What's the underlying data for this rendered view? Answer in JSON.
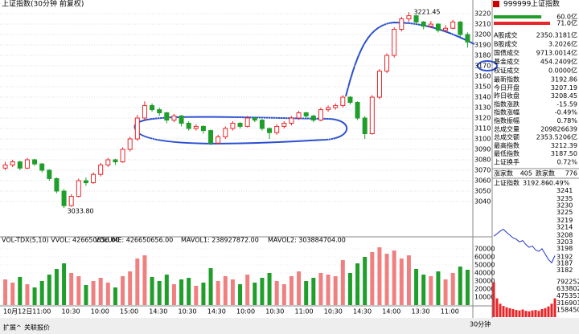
{
  "window": {
    "title": "上证指数(30分钟 前复权)",
    "period": "30分钟",
    "tabs": [
      "扩展^",
      "关联报价"
    ]
  },
  "kline_chart": {
    "ylim": [
      3010,
      3225.4
    ],
    "yticks": [
      3220,
      3210,
      3200,
      3190,
      3180,
      3170,
      3160,
      3150,
      3140,
      3130,
      3120,
      3110,
      3100,
      3090,
      3080,
      3070,
      3060,
      3050,
      3040
    ],
    "up_color": "#e8262a",
    "down_color": "#1f9e2a",
    "high_label": {
      "value": 3221.45,
      "label": "3221.45"
    },
    "low_label": {
      "value": 3033.8,
      "label": "3033.80"
    },
    "candles": [
      [
        3072,
        3078,
        3070,
        3075
      ],
      [
        3075,
        3080,
        3073,
        3078
      ],
      [
        3078,
        3079,
        3070,
        3072
      ],
      [
        3072,
        3082,
        3071,
        3080
      ],
      [
        3080,
        3081,
        3074,
        3076
      ],
      [
        3076,
        3077,
        3068,
        3070
      ],
      [
        3070,
        3071,
        3060,
        3062
      ],
      [
        3062,
        3063,
        3048,
        3050
      ],
      [
        3050,
        3052,
        3033.8,
        3036
      ],
      [
        3036,
        3047,
        3035,
        3045
      ],
      [
        3045,
        3062,
        3044,
        3060
      ],
      [
        3060,
        3063,
        3055,
        3058
      ],
      [
        3058,
        3068,
        3057,
        3066
      ],
      [
        3066,
        3077,
        3064,
        3075
      ],
      [
        3075,
        3082,
        3073,
        3080
      ],
      [
        3080,
        3081,
        3075,
        3078
      ],
      [
        3078,
        3092,
        3077,
        3090
      ],
      [
        3090,
        3102,
        3088,
        3100
      ],
      [
        3100,
        3123,
        3098,
        3120
      ],
      [
        3120,
        3136,
        3118,
        3132
      ],
      [
        3132,
        3134,
        3126,
        3128
      ],
      [
        3128,
        3130,
        3122,
        3125
      ],
      [
        3125,
        3126,
        3115,
        3118
      ],
      [
        3118,
        3124,
        3116,
        3122
      ],
      [
        3122,
        3123,
        3112,
        3115
      ],
      [
        3115,
        3117,
        3108,
        3110
      ],
      [
        3110,
        3114,
        3108,
        3112
      ],
      [
        3112,
        3113,
        3105,
        3108
      ],
      [
        3108,
        3109,
        3094,
        3096
      ],
      [
        3096,
        3104,
        3095,
        3102
      ],
      [
        3102,
        3112,
        3100,
        3110
      ],
      [
        3110,
        3117,
        3108,
        3115
      ],
      [
        3115,
        3116,
        3110,
        3112
      ],
      [
        3112,
        3122,
        3111,
        3120
      ],
      [
        3120,
        3121,
        3116,
        3118
      ],
      [
        3118,
        3119,
        3108,
        3110
      ],
      [
        3110,
        3111,
        3100,
        3106
      ],
      [
        3106,
        3114,
        3104,
        3112
      ],
      [
        3112,
        3117,
        3110,
        3115
      ],
      [
        3115,
        3122,
        3113,
        3120
      ],
      [
        3120,
        3127,
        3118,
        3125
      ],
      [
        3125,
        3126,
        3120,
        3122
      ],
      [
        3122,
        3123,
        3116,
        3118
      ],
      [
        3118,
        3130,
        3117,
        3128
      ],
      [
        3128,
        3132,
        3126,
        3130
      ],
      [
        3130,
        3134,
        3128,
        3132
      ],
      [
        3132,
        3142,
        3130,
        3140
      ],
      [
        3140,
        3141,
        3133,
        3135
      ],
      [
        3135,
        3136,
        3118,
        3120
      ],
      [
        3120,
        3122,
        3100,
        3105
      ],
      [
        3105,
        3142,
        3104,
        3140
      ],
      [
        3140,
        3167,
        3138,
        3165
      ],
      [
        3165,
        3182,
        3163,
        3180
      ],
      [
        3180,
        3207,
        3178,
        3205
      ],
      [
        3205,
        3217,
        3203,
        3215
      ],
      [
        3215,
        3221.45,
        3212,
        3218
      ],
      [
        3218,
        3219,
        3210,
        3212
      ],
      [
        3212,
        3213,
        3205,
        3208
      ],
      [
        3208,
        3213,
        3206,
        3210
      ],
      [
        3210,
        3211,
        3202,
        3204
      ],
      [
        3204,
        3209,
        3203,
        3206
      ],
      [
        3206,
        3214,
        3205,
        3212
      ],
      [
        3212,
        3213,
        3198,
        3200
      ],
      [
        3200,
        3202,
        3187.5,
        3192.86
      ]
    ],
    "time_labels": [
      "10月12日",
      "11:00",
      "10:30",
      "10:00",
      "15:00",
      "14:30",
      "10:30",
      "14:30",
      "10:00",
      "10:30",
      "11:00",
      "10:30",
      "14:30",
      "14:00",
      "13:30",
      "11:00"
    ]
  },
  "volume_chart": {
    "header": "VOL-TDX(5,10)  VVOL: 426650656.00",
    "volume": "VOLUME: 426650656.00",
    "mavol1": "MAVOL1: 238927872.00",
    "mavol2": "MAVOL2: 303884704.00",
    "ylim": [
      0,
      80000
    ],
    "yticks": [
      70000,
      60000,
      50000,
      40000,
      30000,
      20000,
      10000
    ],
    "values": [
      32000,
      28000,
      35000,
      26000,
      22000,
      30000,
      38000,
      45000,
      52000,
      40000,
      36000,
      25000,
      30000,
      34000,
      28000,
      22000,
      36000,
      42000,
      58000,
      62000,
      35000,
      30000,
      38000,
      26000,
      32000,
      34000,
      24000,
      28000,
      46000,
      30000,
      36000,
      32000,
      26000,
      38000,
      28000,
      34000,
      40000,
      30000,
      26000,
      36000,
      42000,
      30000,
      34000,
      40000,
      38000,
      36000,
      56000,
      40000,
      52000,
      60000,
      66000,
      72000,
      64000,
      68000,
      58000,
      62000,
      45000,
      38000,
      36000,
      42000,
      32000,
      40000,
      48000,
      44000
    ]
  },
  "quote_panel": {
    "code": "999999",
    "name": "上证指数",
    "buy": {
      "value": 60.0,
      "label": "60.0亿"
    },
    "sell": {
      "value": 71.0,
      "label": "71.0亿"
    },
    "trade_rows": [
      [
        "A股成交",
        "2350.3181亿"
      ],
      [
        "B股成交",
        "3.2026亿"
      ],
      [
        "国债成交",
        "9713.0014亿"
      ],
      [
        "基金成交",
        "454.2409亿"
      ],
      [
        "权证成交",
        "0.0000亿"
      ]
    ],
    "index_rows": [
      [
        "最新指数",
        "3192.86",
        "#1f9e2a"
      ],
      [
        "今日开盘",
        "3207.19",
        "#1f9e2a"
      ],
      [
        "昨日收盘",
        "3208.45",
        "#000"
      ],
      [
        "指数涨跌",
        "-15.59",
        "#1f9e2a"
      ],
      [
        "指数涨幅",
        "-0.49%",
        "#1f9e2a"
      ],
      [
        "指数振幅",
        "0.78%",
        "#000"
      ],
      [
        "总成交量",
        "209826639",
        "#c00"
      ],
      [
        "总成交额",
        "2353.5206亿",
        "#c00"
      ],
      [
        "最高指数",
        "3212.39",
        "#c00"
      ],
      [
        "最低指数",
        "3187.50",
        "#1f9e2a"
      ],
      [
        "上证换手",
        "0.72%",
        "#000"
      ]
    ],
    "up_count_label": "涨家数",
    "up_count": "405",
    "down_count_label": "跌家数",
    "down_count": "776",
    "mini_title": "上证指数",
    "mini_price": "3192.86",
    "mini_change": "-0.49%",
    "mini_ylim": [
      3180,
      3243
    ],
    "mini_yticks": [
      3241,
      3235,
      3230,
      3225,
      3219,
      3214,
      3208,
      3203,
      3198,
      3192,
      3187,
      3182
    ],
    "mini_prices": [
      3207.19,
      3209,
      3211,
      3212.39,
      3210,
      3208,
      3206,
      3205,
      3203,
      3204,
      3201,
      3199,
      3200,
      3197,
      3196,
      3198,
      3194,
      3190,
      3187.5,
      3192.86
    ],
    "mini_vol_ylim": [
      0,
      880000
    ],
    "mini_vol_yticks": [
      792252,
      633802,
      475351,
      316901,
      158450
    ],
    "mini_volumes": [
      780000,
      420000,
      300000,
      250000,
      220000,
      200000,
      180000,
      160000,
      150000,
      170000,
      140000,
      130000,
      150000,
      160000,
      140000,
      180000,
      200000,
      240000,
      300000,
      420000
    ]
  }
}
